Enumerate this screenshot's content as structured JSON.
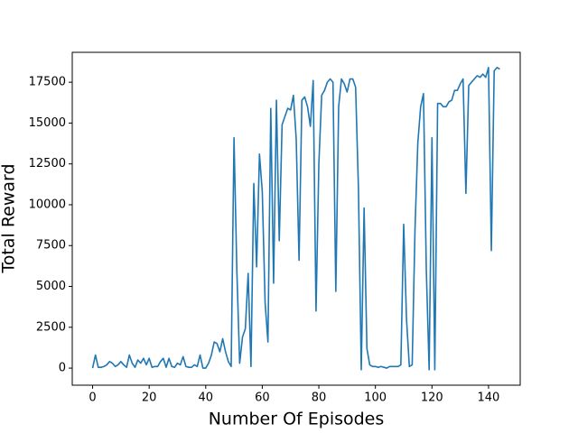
{
  "chart_data": {
    "type": "line",
    "x_label": "Number Of Episodes",
    "y_label": "Total Reward",
    "x": [
      0,
      1,
      2,
      3,
      4,
      5,
      6,
      7,
      8,
      9,
      10,
      11,
      12,
      13,
      14,
      15,
      16,
      17,
      18,
      19,
      20,
      21,
      22,
      23,
      24,
      25,
      26,
      27,
      28,
      29,
      30,
      31,
      32,
      33,
      34,
      35,
      36,
      37,
      38,
      39,
      40,
      41,
      42,
      43,
      44,
      45,
      46,
      47,
      48,
      49,
      50,
      51,
      52,
      53,
      54,
      55,
      56,
      57,
      58,
      59,
      60,
      61,
      62,
      63,
      64,
      65,
      66,
      67,
      68,
      69,
      70,
      71,
      72,
      73,
      74,
      75,
      76,
      77,
      78,
      79,
      80,
      81,
      82,
      83,
      84,
      85,
      86,
      87,
      88,
      89,
      90,
      91,
      92,
      93,
      94,
      95,
      96,
      97,
      98,
      99,
      100,
      101,
      102,
      103,
      104,
      105,
      106,
      107,
      108,
      109,
      110,
      111,
      112,
      113,
      114,
      115,
      116,
      117,
      118,
      119,
      120,
      121,
      122,
      123,
      124,
      125,
      126,
      127,
      128,
      129,
      130,
      131,
      132,
      133,
      134,
      135,
      136,
      137,
      138,
      139,
      140,
      141,
      142,
      143,
      144
    ],
    "series": [
      {
        "color": "#1f77b4",
        "values": [
          0,
          800,
          50,
          50,
          100,
          200,
          400,
          300,
          100,
          200,
          400,
          200,
          50,
          800,
          300,
          50,
          500,
          300,
          600,
          200,
          600,
          50,
          100,
          100,
          400,
          600,
          50,
          600,
          100,
          50,
          300,
          200,
          700,
          100,
          50,
          50,
          200,
          100,
          800,
          0,
          0,
          300,
          800,
          1600,
          1500,
          1000,
          1800,
          1000,
          400,
          100,
          14100,
          6000,
          300,
          1900,
          2400,
          5800,
          100,
          11300,
          6200,
          13100,
          10800,
          4000,
          1600,
          15900,
          5200,
          16400,
          7800,
          14900,
          15400,
          15900,
          15800,
          16700,
          14000,
          6600,
          16400,
          16600,
          16000,
          14800,
          17600,
          3500,
          12500,
          16700,
          17000,
          17500,
          17700,
          17500,
          4700,
          16000,
          17700,
          17400,
          16900,
          17700,
          17700,
          17200,
          11000,
          -100,
          9800,
          1200,
          200,
          100,
          100,
          50,
          100,
          50,
          0,
          100,
          100,
          100,
          100,
          200,
          8800,
          3000,
          100,
          200,
          8500,
          13800,
          16000,
          16800,
          6000,
          -100,
          14100,
          -100,
          16200,
          16200,
          16000,
          16000,
          16300,
          16400,
          17000,
          17000,
          17400,
          17700,
          10700,
          17300,
          17500,
          17700,
          17900,
          17800,
          18000,
          17800,
          18400,
          7200,
          18200,
          18400,
          18300
        ]
      }
    ],
    "xlim": [
      -7.2,
      151.2
    ],
    "ylim": [
      -1045,
      19330
    ],
    "xticks": [
      0,
      20,
      40,
      60,
      80,
      100,
      120,
      140
    ],
    "yticks": [
      0,
      2500,
      5000,
      7500,
      10000,
      12500,
      15000,
      17500
    ]
  }
}
